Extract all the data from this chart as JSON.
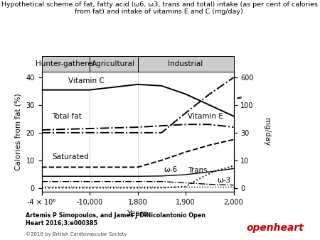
{
  "title_line1": "Hypothetical scheme of fat, fatty acid (ω6, ω3, trans and total) intake (as per cent of calories",
  "title_line2": "from fat) and intake of vitamins E and C (mg/day).",
  "xlabel": "Years",
  "ylabel_left": "Calories from fat (%)",
  "ylabel_right": "mg/day",
  "era_labels": [
    "Hunter-gatherer",
    "Agricultural",
    "Industrial"
  ],
  "x_ticks_labels": [
    "-4 × 10⁶",
    "-10,000",
    "1,800",
    "1,900",
    "2,000"
  ],
  "x_ticks_pos": [
    0,
    1,
    2,
    3,
    4
  ],
  "ylim_left": [
    -1.5,
    42
  ],
  "yticks_left": [
    0,
    10,
    20,
    30,
    40
  ],
  "right_vals": [
    0,
    10,
    30,
    100,
    600
  ],
  "left_equiv": [
    0,
    10,
    20,
    30,
    40
  ],
  "yticks_right_labels": [
    "0",
    "10",
    "30",
    "100",
    "600"
  ],
  "note_text": "Artemis P Simopoulos, and James J DiNicolantonio Open\nHeart 2016;3:e000385",
  "copyright_text": "©2016 by British Cardiovascular Society",
  "openheart_text": "openheart",
  "vitamin_c_x": [
    0,
    1,
    2,
    2.5,
    3,
    3.5,
    4
  ],
  "vitamin_c_y": [
    35.5,
    35.5,
    37.5,
    37.0,
    34.0,
    30.0,
    26.0
  ],
  "total_fat_x": [
    0,
    1,
    2,
    2.5,
    3,
    3.5,
    4
  ],
  "total_fat_y": [
    21.0,
    21.5,
    22.0,
    22.5,
    23.0,
    23.0,
    22.0
  ],
  "saturated_x": [
    0,
    1,
    2,
    2.5,
    3,
    3.5,
    4
  ],
  "saturated_y": [
    7.5,
    7.5,
    7.5,
    10.0,
    13.0,
    15.5,
    17.5
  ],
  "omega6_x": [
    0,
    1,
    2,
    2.5,
    3,
    3.5,
    4
  ],
  "omega6_y": [
    4.2,
    4.2,
    4.2,
    4.3,
    4.8,
    5.8,
    7.0
  ],
  "omega3_dash_x": [
    0,
    1,
    2,
    2.5,
    3,
    3.5,
    4
  ],
  "omega3_dash_y": [
    2.3,
    2.3,
    2.3,
    2.3,
    1.8,
    1.3,
    1.0
  ],
  "omega3_dot_x": [
    0,
    1,
    2,
    2.5,
    3,
    3.5,
    4
  ],
  "omega3_dot_y": [
    0.3,
    0.3,
    0.3,
    0.3,
    0.3,
    0.3,
    0.3
  ],
  "trans_x": [
    0,
    1,
    2,
    2.5,
    3,
    3.3,
    3.6,
    4
  ],
  "trans_y": [
    0.0,
    0.0,
    0.0,
    0.0,
    0.5,
    3.5,
    6.0,
    8.0
  ],
  "vitamine_right_x": [
    0,
    1,
    2,
    2.5,
    3,
    3.5,
    4
  ],
  "vitamine_right_y": [
    30,
    30,
    30,
    30,
    80,
    300,
    600
  ],
  "ann_vitc_x": 0.55,
  "ann_vitc_y": 37.5,
  "ann_totfat_x": 0.22,
  "ann_totfat_y": 24.5,
  "ann_sat_x": 0.22,
  "ann_sat_y": 9.8,
  "ann_o6_x": 2.55,
  "ann_o6_y": 5.2,
  "ann_o3_x": 3.65,
  "ann_o3_y": 1.5,
  "ann_trans_x": 3.05,
  "ann_trans_y": 5.0,
  "ann_vite_x": 3.05,
  "ann_vite_y": 24.5
}
